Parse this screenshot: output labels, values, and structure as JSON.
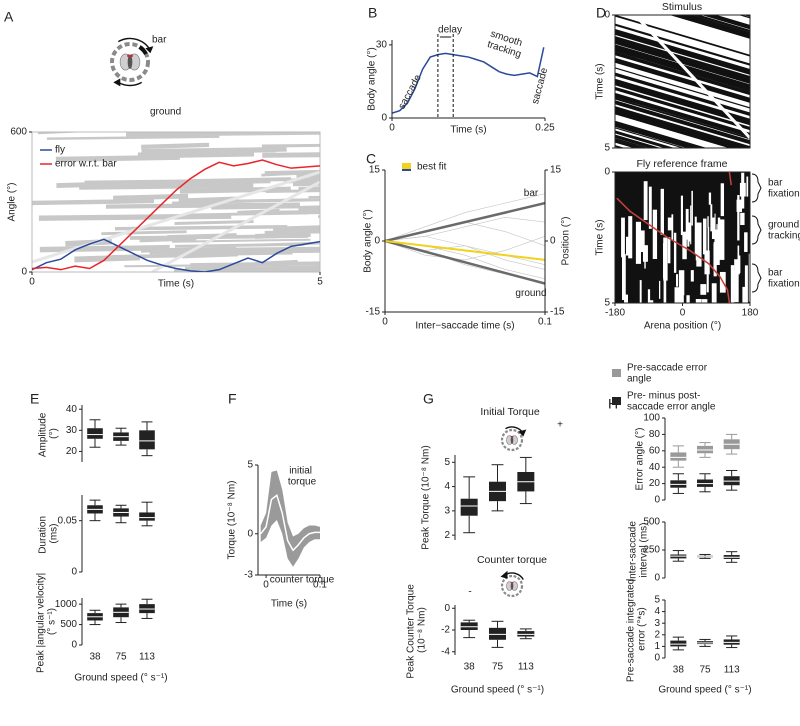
{
  "chart_data": [
    {
      "panel": "A",
      "type": "line",
      "xlabel": "Time (s)",
      "ylabel": "Angle (°)",
      "xlim": [
        0,
        5
      ],
      "xticks": [
        0,
        5
      ],
      "ylim": [
        0,
        600
      ],
      "yticks": [
        0,
        600
      ],
      "background": "stripes",
      "annotations": [
        "bar",
        "ground"
      ],
      "legend_marker": "line",
      "series": [
        {
          "name": "fly",
          "color": "#2b4a9a",
          "x": [
            0,
            0.25,
            0.5,
            0.75,
            1,
            1.25,
            1.5,
            1.75,
            2,
            2.25,
            2.5,
            2.75,
            3,
            3.25,
            3.5,
            3.75,
            4,
            4.25,
            4.5,
            4.75,
            5
          ],
          "values": [
            10,
            40,
            55,
            95,
            120,
            140,
            110,
            80,
            50,
            30,
            15,
            5,
            0,
            10,
            35,
            60,
            40,
            80,
            110,
            120,
            130
          ]
        },
        {
          "name": "error w.r.t. bar",
          "color": "#e8262a",
          "x": [
            0,
            0.25,
            0.5,
            0.75,
            1,
            1.25,
            1.5,
            1.75,
            2,
            2.25,
            2.5,
            2.75,
            3,
            3.25,
            3.5,
            3.75,
            4,
            4.25,
            4.5,
            4.75,
            5
          ],
          "values": [
            15,
            20,
            10,
            25,
            15,
            50,
            110,
            170,
            230,
            290,
            350,
            400,
            440,
            470,
            455,
            465,
            480,
            460,
            445,
            450,
            455
          ]
        }
      ]
    },
    {
      "panel": "B",
      "type": "line",
      "xlabel": "Time (s)",
      "ylabel": "Body angle (°)",
      "xlim": [
        0,
        0.25
      ],
      "xticks": [
        0,
        0.25
      ],
      "ylim": [
        0,
        32
      ],
      "yticks": [
        0,
        30
      ],
      "annotations": [
        "delay",
        "saccade",
        "smooth tracking",
        "saccade"
      ],
      "markers_x": [
        0.075,
        0.1
      ],
      "series": [
        {
          "color": "#2b4a9a",
          "x": [
            0,
            0.0125,
            0.025,
            0.0375,
            0.05,
            0.0625,
            0.075,
            0.0875,
            0.1,
            0.1125,
            0.125,
            0.1375,
            0.15,
            0.1625,
            0.175,
            0.1875,
            0.2,
            0.2125,
            0.225,
            0.2375,
            0.248
          ],
          "values": [
            2,
            3,
            6,
            12,
            20,
            25,
            26,
            26.5,
            26,
            25.5,
            25,
            24,
            23,
            21,
            19,
            18,
            17.5,
            18,
            18.5,
            17,
            29
          ]
        }
      ]
    },
    {
      "panel": "C",
      "type": "line",
      "xlabel": "Inter−saccade time (s)",
      "ylabel": "Body angle (°)",
      "y2label": "Position (°)",
      "xlim": [
        0,
        0.1
      ],
      "xticks": [
        0,
        0.1
      ],
      "ylim": [
        -15,
        15
      ],
      "yticks": [
        -15,
        0,
        15
      ],
      "y2lim": [
        -15,
        15
      ],
      "y2ticks": [
        -15,
        0,
        15
      ],
      "legend_marker": "square",
      "series": [
        {
          "color": "#c4c4c4",
          "line_width": 0.6,
          "x": [
            0,
            0.025,
            0.05,
            0.075,
            0.1
          ],
          "values": [
            0,
            3,
            6,
            8,
            10
          ]
        },
        {
          "color": "#c4c4c4",
          "line_width": 0.6,
          "x": [
            0,
            0.025,
            0.05,
            0.075,
            0.1
          ],
          "values": [
            0,
            -2,
            -5,
            -7,
            -9
          ]
        },
        {
          "color": "#c4c4c4",
          "line_width": 0.6,
          "x": [
            0,
            0.025,
            0.05,
            0.075,
            0.1
          ],
          "values": [
            0,
            1,
            -1,
            -3,
            -5
          ]
        },
        {
          "color": "#c4c4c4",
          "line_width": 0.6,
          "x": [
            0,
            0.025,
            0.05,
            0.075,
            0.1
          ],
          "values": [
            0,
            -3,
            -4,
            -2,
            1
          ]
        },
        {
          "color": "#c4c4c4",
          "line_width": 0.6,
          "x": [
            0,
            0.025,
            0.05,
            0.075,
            0.1
          ],
          "values": [
            0,
            2,
            4,
            2,
            -1
          ]
        },
        {
          "color": "#c4c4c4",
          "line_width": 0.6,
          "x": [
            0,
            0.025,
            0.05,
            0.075,
            0.1
          ],
          "values": [
            0,
            -1,
            -3,
            -6,
            -8
          ]
        },
        {
          "color": "#c4c4c4",
          "line_width": 0.6,
          "x": [
            0,
            0.025,
            0.05,
            0.075,
            0.1
          ],
          "values": [
            0,
            1,
            3,
            5,
            4
          ]
        },
        {
          "color": "#c4c4c4",
          "line_width": 0.6,
          "x": [
            0,
            0.025,
            0.05,
            0.075,
            0.1
          ],
          "values": [
            0,
            -2,
            -1,
            -4,
            -6
          ]
        },
        {
          "name": "bar",
          "inline": true,
          "color": "#6a6a6a",
          "line_width": 2.5,
          "x": [
            0,
            0.1
          ],
          "values": [
            0,
            8
          ]
        },
        {
          "name": "ground",
          "inline": true,
          "color": "#6a6a6a",
          "line_width": 2.5,
          "x": [
            0,
            0.1
          ],
          "values": [
            0,
            -9
          ]
        },
        {
          "name": "best fit",
          "color": "#f2d21b",
          "line_width": 2,
          "x": [
            0,
            0.1
          ],
          "values": [
            0,
            -4
          ]
        }
      ]
    },
    {
      "panel": "D",
      "type": "raster",
      "title": "Stimulus",
      "ylabel": "Time (s)",
      "pattern": "diagonal",
      "xlim": [
        -180,
        180
      ],
      "ylim": [
        5,
        0
      ],
      "yticks": [
        0,
        5
      ]
    },
    {
      "type": "raster",
      "title": "Fly reference frame",
      "ylabel": "Time (s)",
      "xlabel": "Arena position (°)",
      "pattern": "vertical",
      "xlim": [
        -180,
        180
      ],
      "xticks": [
        -180,
        0,
        180
      ],
      "ylim": [
        5,
        0
      ],
      "yticks": [
        0,
        5
      ],
      "annotations": [
        "bar fixation",
        "ground tracking",
        "bar fixation"
      ],
      "series": [
        {
          "color": "#c8413c",
          "x": [
            125,
            130,
            null,
            -175,
            -140,
            -90,
            -40,
            20,
            70,
            100,
            120,
            125
          ],
          "values": [
            0,
            0.5,
            0.9,
            1,
            1.5,
            2,
            2.5,
            3,
            3.5,
            4,
            4.5,
            5
          ]
        }
      ]
    },
    {
      "panel": "E",
      "type": "box",
      "ylabel": "Amplitude (°)",
      "ylim": [
        15,
        42
      ],
      "yticks": [
        20,
        30,
        40
      ],
      "series": [
        {
          "color": "#222222",
          "low": [
            22,
            23,
            18
          ],
          "q1": [
            26,
            25,
            21
          ],
          "median": [
            28,
            27,
            25
          ],
          "q3": [
            31,
            29,
            30
          ],
          "high": [
            35,
            31,
            34
          ]
        }
      ]
    },
    {
      "type": "box",
      "ylabel": "Duration (ms)",
      "ylim": [
        0,
        0.075
      ],
      "yticks": [
        0,
        0.05
      ],
      "series": [
        {
          "color": "#222222",
          "low": [
            0.05,
            0.048,
            0.045
          ],
          "q1": [
            0.057,
            0.054,
            0.05
          ],
          "median": [
            0.061,
            0.058,
            0.053
          ],
          "q3": [
            0.065,
            0.062,
            0.058
          ],
          "high": [
            0.07,
            0.065,
            0.068
          ]
        }
      ]
    },
    {
      "type": "box",
      "ylabel": "Peak |angular velocity| (° s⁻¹)",
      "xlabel": "Ground speed (° s⁻¹)",
      "categories": [
        38,
        75,
        113
      ],
      "ylim": [
        0,
        1150
      ],
      "yticks": [
        0,
        500,
        1000
      ],
      "series": [
        {
          "color": "#222222",
          "low": [
            500,
            550,
            650
          ],
          "q1": [
            600,
            680,
            780
          ],
          "median": [
            690,
            800,
            880
          ],
          "q3": [
            780,
            920,
            1000
          ],
          "high": [
            850,
            1000,
            1120
          ]
        }
      ]
    },
    {
      "panel": "F",
      "type": "line",
      "xlabel": "Time (s)",
      "ylabel": "Torque (10⁻⁸ Nm)",
      "annotations": [
        "initial torque",
        "counter torque"
      ],
      "xlim": [
        -0.015,
        0.1
      ],
      "xticks": [
        0,
        0.1
      ],
      "ylim": [
        -3,
        5
      ],
      "yticks": [
        -3,
        0,
        5
      ],
      "series": [
        {
          "color": "#ffffff",
          "band_color": "#9a9a9a",
          "x": [
            -0.01,
            0,
            0.01,
            0.02,
            0.03,
            0.04,
            0.05,
            0.06,
            0.07,
            0.08,
            0.09,
            0.1
          ],
          "values": [
            0,
            0.5,
            2.5,
            2.8,
            1.5,
            -0.5,
            -1.2,
            -0.8,
            -0.3,
            0,
            0.1,
            0.1
          ],
          "upper": [
            0.6,
            1.5,
            4.5,
            4.6,
            3.2,
            0.8,
            -0.2,
            0,
            0.4,
            0.6,
            0.6,
            0.5
          ],
          "lower": [
            -0.6,
            -0.3,
            0.6,
            1,
            0,
            -1.8,
            -2.4,
            -1.8,
            -1,
            -0.6,
            -0.4,
            -0.4
          ]
        }
      ]
    },
    {
      "panel": "G",
      "type": "box",
      "title": "Initial Torque",
      "ylabel": "Peak Torque (10⁻⁸ Nm)",
      "annotations": [
        "+"
      ],
      "ylim": [
        1.8,
        5.3
      ],
      "yticks": [
        2,
        3,
        4,
        5
      ],
      "series": [
        {
          "color": "#222222",
          "low": [
            2.1,
            3,
            3.3
          ],
          "q1": [
            2.8,
            3.4,
            3.8
          ],
          "median": [
            3.2,
            3.8,
            4.2
          ],
          "q3": [
            3.5,
            4.2,
            4.6
          ],
          "high": [
            4.4,
            4.9,
            5.2
          ]
        }
      ]
    },
    {
      "type": "box",
      "title": "Counter torque",
      "ylabel": "Peak Counter Torque (10⁻⁸ Nm)",
      "xlabel": "Ground speed (° s⁻¹)",
      "annotations": [
        "-"
      ],
      "categories": [
        38,
        75,
        113
      ],
      "ylim": [
        -4.3,
        0.3
      ],
      "yticks": [
        -4,
        -2,
        0
      ],
      "series": [
        {
          "color": "#222222",
          "low": [
            -2.7,
            -3.6,
            -2.8
          ],
          "q1": [
            -2,
            -2.9,
            -2.6
          ],
          "median": [
            -1.7,
            -2.4,
            -2.4
          ],
          "q3": [
            -1.3,
            -1.8,
            -2.1
          ],
          "high": [
            -1.1,
            -1.2,
            -1.9
          ]
        }
      ]
    },
    {
      "panel": "H",
      "type": "box",
      "ylabel": "Error angle (°)",
      "ylim": [
        0,
        100
      ],
      "yticks": [
        0,
        20,
        40,
        60,
        80,
        100
      ],
      "legend_marker": "square",
      "series": [
        {
          "name": "Pre-saccade error angle",
          "color": "#999999",
          "low": [
            40,
            52,
            56
          ],
          "q1": [
            48,
            57,
            62
          ],
          "median": [
            52,
            61,
            68
          ],
          "q3": [
            58,
            66,
            74
          ],
          "high": [
            66,
            70,
            80
          ]
        },
        {
          "name": "Pre- minus post- saccade error angle",
          "color": "#222222",
          "low": [
            8,
            10,
            12
          ],
          "q1": [
            15,
            16,
            18
          ],
          "median": [
            19,
            20,
            23
          ],
          "q3": [
            24,
            25,
            29
          ],
          "high": [
            32,
            32,
            36
          ]
        }
      ]
    },
    {
      "type": "box",
      "ylabel": "Inter-saccade interval (ms)",
      "ylim": [
        0,
        500
      ],
      "yticks": [
        0,
        250,
        500
      ],
      "series": [
        {
          "color": "#222222",
          "low": [
            150,
            175,
            140
          ],
          "q1": [
            175,
            185,
            170
          ],
          "median": [
            195,
            190,
            185
          ],
          "q3": [
            210,
            198,
            205
          ],
          "high": [
            245,
            210,
            235
          ]
        }
      ]
    },
    {
      "type": "box",
      "ylabel": "Pre-saccade integrated error (°*s)",
      "xlabel": "Ground speed (° s⁻¹)",
      "categories": [
        38,
        75,
        113
      ],
      "ylim": [
        0,
        5
      ],
      "yticks": [
        0,
        1,
        2,
        3,
        4,
        5
      ],
      "series": [
        {
          "color": "#222222",
          "low": [
            0.7,
            1,
            0.9
          ],
          "q1": [
            1,
            1.2,
            1.15
          ],
          "median": [
            1.2,
            1.3,
            1.35
          ],
          "q3": [
            1.5,
            1.45,
            1.6
          ],
          "high": [
            1.8,
            1.6,
            1.9
          ]
        }
      ]
    }
  ]
}
